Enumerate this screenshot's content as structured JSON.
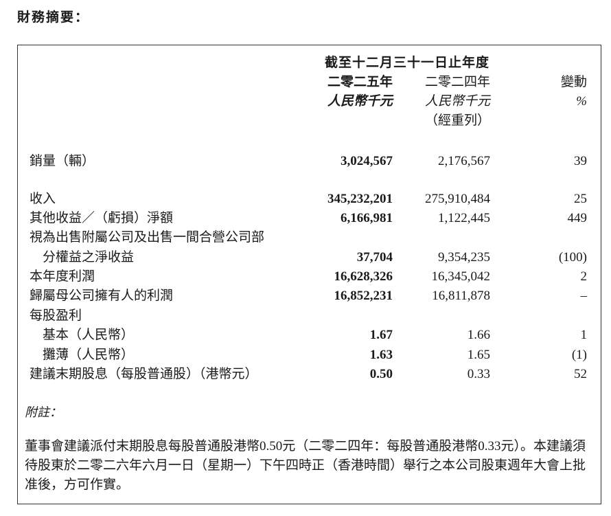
{
  "title": "財務摘要：",
  "header": {
    "period": "截至十二月三十一日止年度",
    "col2025": "二零二五年",
    "col2024": "二零二四年",
    "change": "變動",
    "unit2025": "人民幣千元",
    "unit2024": "人民幣千元",
    "unit_change": "%",
    "restated": "（經重列）"
  },
  "rows": [
    {
      "label": "銷量（輛）",
      "v2025": "3,024,567",
      "v2024": "2,176,567",
      "change": "39"
    },
    {
      "label": "收入",
      "v2025": "345,232,201",
      "v2024": "275,910,484",
      "change": "25"
    },
    {
      "label": "其他收益／（虧損）淨額",
      "v2025": "6,166,981",
      "v2024": "1,122,445",
      "change": "449"
    },
    {
      "label": "視為出售附屬公司及出售一間合營公司部"
    },
    {
      "label": "分權益之淨收益",
      "v2025": "37,704",
      "v2024": "9,354,235",
      "change": "(100)"
    },
    {
      "label": "本年度利潤",
      "v2025": "16,628,326",
      "v2024": "16,345,042",
      "change": "2"
    },
    {
      "label": "歸屬母公司擁有人的利潤",
      "v2025": "16,852,231",
      "v2024": "16,811,878",
      "change": "–"
    },
    {
      "label": "每股盈利"
    },
    {
      "label": "基本（人民幣）",
      "v2025": "1.67",
      "v2024": "1.66",
      "change": "1"
    },
    {
      "label": "攤薄（人民幣）",
      "v2025": "1.63",
      "v2024": "1.65",
      "change": "(1)"
    },
    {
      "label": "建議末期股息（每股普通股）（港幣元）",
      "v2025": "0.50",
      "v2024": "0.33",
      "change": "52"
    }
  ],
  "note_heading": "附註：",
  "note": "董事會建議派付末期股息每股普通股港幣0.50元（二零二四年：每股普通股港幣0.33元）。本建議須待股東於二零二六年六月一日（星期一）下午四時正（香港時間）舉行之本公司股東週年大會上批准後，方可作實。"
}
